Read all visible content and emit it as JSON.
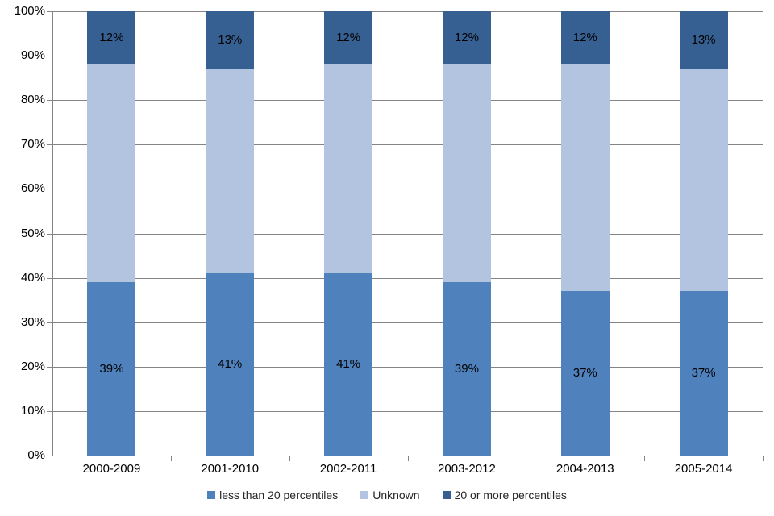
{
  "chart_data": {
    "type": "bar",
    "stacked": true,
    "percent_stacked": true,
    "title": "",
    "categories": [
      "2000-2009",
      "2001-2010",
      "2002-2011",
      "2003-2012",
      "2004-2013",
      "2005-2014"
    ],
    "series": [
      {
        "name": "less than 20 percentiles",
        "color": "#4F81BD",
        "values": [
          39,
          41,
          41,
          39,
          37,
          37
        ],
        "labels": [
          "39%",
          "41%",
          "41%",
          "39%",
          "37%",
          "37%"
        ],
        "show_labels": true
      },
      {
        "name": "Unknown",
        "color": "#B3C4E0",
        "values": [
          49,
          46,
          47,
          49,
          51,
          50
        ],
        "labels": [
          "",
          "",
          "",
          "",
          "",
          ""
        ],
        "show_labels": false
      },
      {
        "name": "20 or more percentiles",
        "color": "#376092",
        "values": [
          12,
          13,
          12,
          12,
          12,
          13
        ],
        "labels": [
          "12%",
          "13%",
          "12%",
          "12%",
          "12%",
          "13%"
        ],
        "show_labels": true
      }
    ],
    "y_axis": {
      "min": 0,
      "max": 100,
      "tick_step": 10,
      "tick_labels": [
        "0%",
        "10%",
        "20%",
        "30%",
        "40%",
        "50%",
        "60%",
        "70%",
        "80%",
        "90%",
        "100%"
      ]
    },
    "x_axis": {
      "tick_labels": [
        "2000-2009",
        "2001-2010",
        "2002-2011",
        "2003-2012",
        "2004-2013",
        "2005-2014"
      ]
    },
    "legend": {
      "position": "bottom",
      "entries": [
        {
          "label": "less than 20 percentiles",
          "color": "#4F81BD"
        },
        {
          "label": "Unknown",
          "color": "#B3C4E0"
        },
        {
          "label": "20 or more percentiles",
          "color": "#376092"
        }
      ]
    },
    "grid": true,
    "colors": {
      "gridline": "#848484",
      "axis": "#848484",
      "data_label_text": "#000000",
      "legend_text": "#262626",
      "background": "#FFFFFF"
    }
  }
}
